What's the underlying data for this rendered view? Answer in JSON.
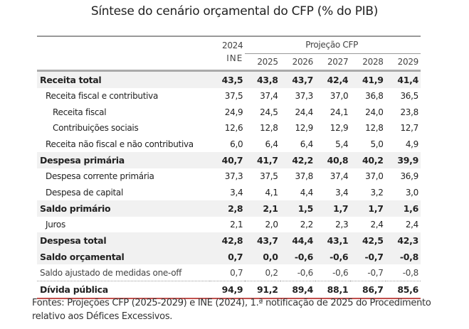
{
  "title": {
    "main": "Síntese do cenário orçamental do CFP",
    "unit": "(% do PIB)"
  },
  "header": {
    "base_year": "2024",
    "base_source": "INE",
    "projection_label": "Projeção CFP",
    "years": [
      "2025",
      "2026",
      "2027",
      "2028",
      "2029"
    ]
  },
  "rows": [
    {
      "label": "Receita total",
      "values": [
        "43,5",
        "43,8",
        "43,7",
        "42,4",
        "41,9",
        "41,4"
      ]
    },
    {
      "label": "Receita fiscal e contributiva",
      "values": [
        "37,5",
        "37,4",
        "37,3",
        "37,0",
        "36,8",
        "36,5"
      ]
    },
    {
      "label": "Receita fiscal",
      "values": [
        "24,9",
        "24,5",
        "24,4",
        "24,1",
        "24,0",
        "23,8"
      ]
    },
    {
      "label": "Contribuições sociais",
      "values": [
        "12,6",
        "12,8",
        "12,9",
        "12,9",
        "12,8",
        "12,7"
      ]
    },
    {
      "label": "Receita não fiscal e não contributiva",
      "values": [
        "6,0",
        "6,4",
        "6,4",
        "5,4",
        "5,0",
        "4,9"
      ]
    },
    {
      "label": "Despesa primária",
      "values": [
        "40,7",
        "41,7",
        "42,2",
        "40,8",
        "40,2",
        "39,9"
      ]
    },
    {
      "label": "Despesa corrente primária",
      "values": [
        "37,3",
        "37,5",
        "37,8",
        "37,4",
        "37,0",
        "36,9"
      ]
    },
    {
      "label": "Despesa de capital",
      "values": [
        "3,4",
        "4,1",
        "4,4",
        "3,4",
        "3,2",
        "3,0"
      ]
    },
    {
      "label": "Saldo primário",
      "values": [
        "2,8",
        "2,1",
        "1,5",
        "1,7",
        "1,7",
        "1,6"
      ]
    },
    {
      "label": "Juros",
      "values": [
        "2,1",
        "2,0",
        "2,2",
        "2,3",
        "2,4",
        "2,4"
      ]
    },
    {
      "label": "Despesa total",
      "values": [
        "42,8",
        "43,7",
        "44,4",
        "43,1",
        "42,5",
        "42,3"
      ]
    },
    {
      "label": "Saldo orçamental",
      "values": [
        "0,7",
        "0,0",
        "-0,6",
        "-0,6",
        "-0,7",
        "-0,8"
      ]
    },
    {
      "label": "Saldo ajustado de medidas one-off",
      "values": [
        "0,7",
        "0,2",
        "-0,6",
        "-0,6",
        "-0,7",
        "-0,8"
      ]
    },
    {
      "label": "Dívida pública",
      "values": [
        "94,9",
        "91,2",
        "89,4",
        "88,1",
        "86,7",
        "85,6"
      ]
    }
  ],
  "source": "Fontes: Projeções CFP (2025-2029) e INE (2024), 1.ª notificação de 2025 do Procedimento relativo aos Défices Excessivos."
}
